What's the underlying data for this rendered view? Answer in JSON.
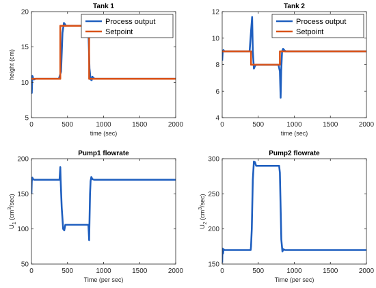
{
  "chart_data": [
    {
      "type": "line",
      "title": "Tank 1",
      "xlabel": "time (sec)",
      "ylabel": "height (cm)",
      "xlim": [
        0,
        2000
      ],
      "ylim": [
        5,
        20
      ],
      "xticks": [
        0,
        500,
        1000,
        1500,
        2000
      ],
      "yticks": [
        5,
        10,
        15,
        20
      ],
      "legend": {
        "position": "top-right",
        "entries": [
          "Process output",
          "Setpoint"
        ]
      },
      "series": [
        {
          "name": "Process output",
          "color": "#1f5fbf",
          "x": [
            0,
            5,
            12,
            18,
            25,
            35,
            60,
            100,
            380,
            410,
            430,
            450,
            465,
            480,
            500,
            600,
            780,
            790,
            805,
            820,
            835,
            845,
            860,
            880,
            900,
            950,
            2000
          ],
          "y": [
            10.5,
            8.5,
            10.9,
            10.8,
            10.5,
            10.4,
            10.5,
            10.5,
            10.5,
            11.5,
            17.0,
            18.4,
            18.2,
            18.0,
            18.0,
            18.0,
            18.0,
            17.3,
            12.0,
            10.4,
            10.3,
            10.8,
            10.6,
            10.5,
            10.5,
            10.5,
            10.5
          ]
        },
        {
          "name": "Setpoint",
          "color": "#d95319",
          "x": [
            0,
            400,
            400,
            800,
            800,
            2000
          ],
          "y": [
            10.5,
            10.5,
            18.0,
            18.0,
            10.5,
            10.5
          ]
        }
      ]
    },
    {
      "type": "line",
      "title": "Tank 2",
      "xlabel": "time (sec)",
      "ylabel": "",
      "xlim": [
        0,
        2000
      ],
      "ylim": [
        4,
        12
      ],
      "xticks": [
        0,
        500,
        1000,
        1500,
        2000
      ],
      "yticks": [
        4,
        6,
        8,
        10,
        12
      ],
      "legend": {
        "position": "top-right",
        "entries": [
          "Process output",
          "Setpoint"
        ]
      },
      "series": [
        {
          "name": "Process output",
          "color": "#1f5fbf",
          "x": [
            0,
            8,
            18,
            28,
            40,
            60,
            100,
            380,
            400,
            415,
            425,
            440,
            455,
            470,
            500,
            780,
            800,
            810,
            818,
            830,
            845,
            860,
            880,
            900,
            2000
          ],
          "y": [
            8.3,
            9.0,
            9.1,
            9.0,
            9.0,
            9.0,
            9.0,
            9.0,
            10.5,
            11.6,
            9.0,
            7.7,
            7.9,
            8.0,
            8.0,
            8.0,
            7.5,
            5.5,
            7.5,
            9.0,
            9.2,
            9.1,
            9.0,
            9.0,
            9.0
          ]
        },
        {
          "name": "Setpoint",
          "color": "#d95319",
          "x": [
            0,
            400,
            400,
            800,
            800,
            2000
          ],
          "y": [
            9.0,
            9.0,
            8.0,
            8.0,
            9.0,
            9.0
          ]
        }
      ]
    },
    {
      "type": "line",
      "title": "Pump1 flowrate",
      "xlabel": "Time (per sec)",
      "ylabel": "U₁ (cm³/sec)",
      "xlim": [
        0,
        2000
      ],
      "ylim": [
        50,
        200
      ],
      "xticks": [
        0,
        500,
        1000,
        1500,
        2000
      ],
      "yticks": [
        50,
        100,
        150,
        200
      ],
      "series": [
        {
          "color": "#1f5fbf",
          "x": [
            0,
            5,
            12,
            22,
            40,
            100,
            390,
            400,
            405,
            420,
            440,
            455,
            470,
            500,
            600,
            790,
            800,
            805,
            812,
            820,
            830,
            845,
            870,
            900,
            2000
          ],
          "y": [
            150,
            168,
            173,
            171,
            170,
            170,
            170,
            188,
            170,
            130,
            100,
            98,
            106,
            106,
            106,
            106,
            84,
            110,
            150,
            168,
            174,
            171,
            170,
            170,
            170
          ]
        }
      ]
    },
    {
      "type": "line",
      "title": "Pump2 flowrate",
      "xlabel": "Time (per sec)",
      "ylabel": "U₂ (cm³/sec)",
      "xlim": [
        0,
        2000
      ],
      "ylim": [
        150,
        300
      ],
      "xticks": [
        0,
        500,
        1000,
        1500,
        2000
      ],
      "yticks": [
        150,
        200,
        250,
        300
      ],
      "series": [
        {
          "color": "#1f5fbf",
          "x": [
            0,
            5,
            12,
            20,
            30,
            60,
            100,
            395,
            400,
            410,
            425,
            440,
            455,
            470,
            500,
            600,
            790,
            800,
            810,
            820,
            835,
            850,
            870,
            900,
            2000
          ],
          "y": [
            152,
            172,
            165,
            171,
            170,
            170,
            170,
            170,
            175,
            200,
            270,
            296,
            295,
            290,
            290,
            290,
            290,
            280,
            230,
            185,
            168,
            171,
            170,
            170,
            170
          ]
        }
      ]
    }
  ]
}
